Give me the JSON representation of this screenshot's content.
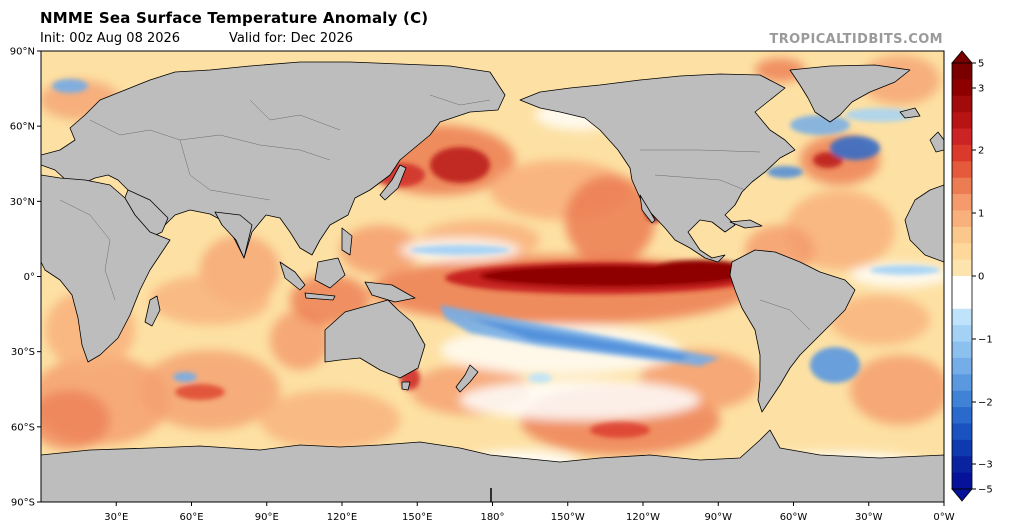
{
  "header": {
    "title": "NMME Sea Surface Temperature Anomaly (C)",
    "init": "Init: 00z Aug 08 2026",
    "valid": "Valid for: Dec 2026",
    "brand": "TROPICALTIDBITS.COM"
  },
  "map": {
    "projection": "equirectangular",
    "lon_range": [
      0,
      360
    ],
    "lat_range": [
      -90,
      90
    ],
    "lat_ticks": [
      {
        "value": 90,
        "label": "90°N"
      },
      {
        "value": 60,
        "label": "60°N"
      },
      {
        "value": 30,
        "label": "30°N"
      },
      {
        "value": 0,
        "label": "0°"
      },
      {
        "value": -30,
        "label": "30°S"
      },
      {
        "value": -60,
        "label": "60°S"
      },
      {
        "value": -90,
        "label": "90°S"
      }
    ],
    "lon_ticks": [
      {
        "value": 30,
        "label": "30°E"
      },
      {
        "value": 60,
        "label": "60°E"
      },
      {
        "value": 90,
        "label": "90°E"
      },
      {
        "value": 120,
        "label": "120°E"
      },
      {
        "value": 150,
        "label": "150°E"
      },
      {
        "value": 180,
        "label": "180°"
      },
      {
        "value": 210,
        "label": "150°W"
      },
      {
        "value": 240,
        "label": "120°W"
      },
      {
        "value": 270,
        "label": "90°W"
      },
      {
        "value": 300,
        "label": "60°W"
      },
      {
        "value": 330,
        "label": "30°W"
      },
      {
        "value": 360,
        "label": "0°W"
      }
    ],
    "land_color": "#bdbdbd",
    "ocean_base_color": "#fde1a4"
  },
  "colorbar": {
    "labels": [
      {
        "value": 5,
        "label": "5"
      },
      {
        "value": 3,
        "label": "3"
      },
      {
        "value": 2,
        "label": "2"
      },
      {
        "value": 1,
        "label": "1"
      },
      {
        "value": 0,
        "label": "0"
      },
      {
        "value": -1,
        "label": "−1"
      },
      {
        "value": -2,
        "label": "−2"
      },
      {
        "value": -3,
        "label": "−3"
      },
      {
        "value": -5,
        "label": "−5"
      }
    ],
    "colors_top_to_bottom": [
      "#7a0000",
      "#8e0000",
      "#a30a0a",
      "#b81414",
      "#cc2424",
      "#db3a2a",
      "#e45a3a",
      "#ec7c52",
      "#f49a6c",
      "#f8b07c",
      "#fbc88c",
      "#fdd89a",
      "#fde4ae",
      "#ffffff",
      "#ffffff",
      "#bfe3fb",
      "#a4d2f6",
      "#8cc0ef",
      "#74ade8",
      "#5a98e0",
      "#4082d6",
      "#2a6acc",
      "#1a52c0",
      "#0e3aaf",
      "#0a24a0",
      "#06129a"
    ]
  },
  "chart_data": {
    "type": "heatmap",
    "title": "NMME Sea Surface Temperature Anomaly (C)",
    "value_range": [
      -5,
      5
    ],
    "features": [
      {
        "name": "Eastern equatorial Pacific warm anomaly",
        "lon": [
          180,
          280
        ],
        "lat": [
          -5,
          6
        ],
        "value": 3.5
      },
      {
        "name": "South Pacific cool band",
        "lon": [
          175,
          255
        ],
        "lat": [
          -30,
          -10
        ],
        "value": -0.8
      },
      {
        "name": "North Pacific cool patch",
        "lon": [
          170,
          205
        ],
        "lat": [
          5,
          13
        ],
        "value": -0.5
      },
      {
        "name": "Kuroshio warm anomaly",
        "lon": [
          145,
          185
        ],
        "lat": [
          30,
          50
        ],
        "value": 2.0
      },
      {
        "name": "Baja California warm anomaly",
        "lon": [
          235,
          250
        ],
        "lat": [
          18,
          30
        ],
        "value": 2.2
      },
      {
        "name": "NW Atlantic warm anomaly",
        "lon": [
          310,
          330
        ],
        "lat": [
          38,
          47
        ],
        "value": 2.0
      },
      {
        "name": "Labrador Sea cool anomaly",
        "lon": [
          300,
          345
        ],
        "lat": [
          45,
          60
        ],
        "value": -1.0
      },
      {
        "name": "SW Atlantic cool anomaly",
        "lon": [
          298,
          318
        ],
        "lat": [
          -38,
          -25
        ],
        "value": -1.2
      },
      {
        "name": "Tasman Sea warm anomaly",
        "lon": [
          145,
          160
        ],
        "lat": [
          -45,
          -35
        ],
        "value": 1.8
      }
    ]
  }
}
